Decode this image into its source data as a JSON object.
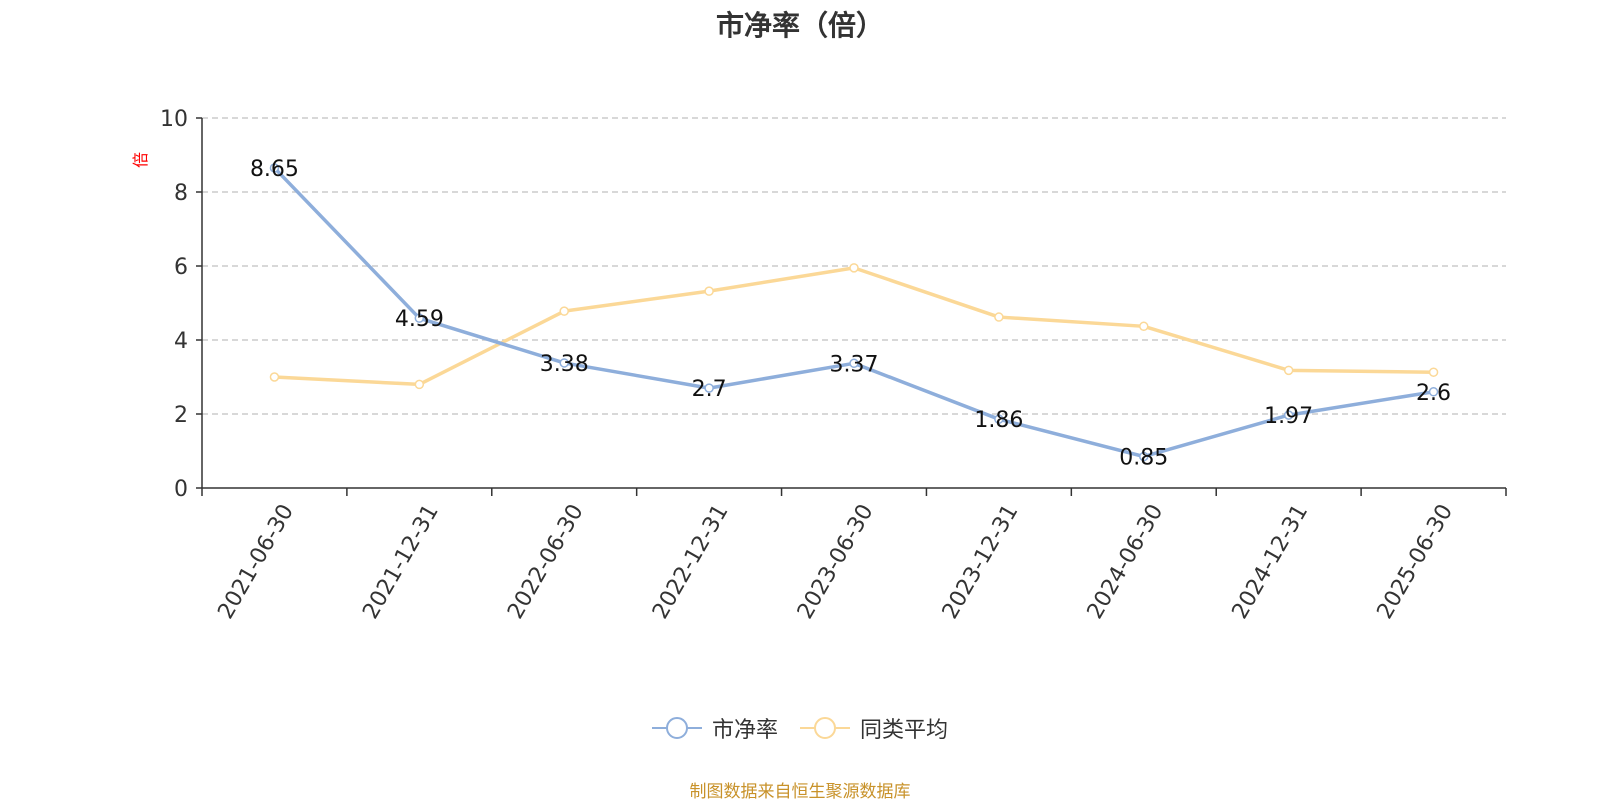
{
  "title": "市净率（倍）",
  "y_unit": "倍",
  "source_note": "制图数据来自恒生聚源数据库",
  "colors": {
    "series_1": "#8eaedb",
    "series_2": "#fbd897",
    "grid": "#cccccc",
    "axis": "#333333",
    "unit_label": "#ff0000",
    "source_note": "#c8922a"
  },
  "chart_data": {
    "type": "line",
    "title": "市净率（倍）",
    "x": [
      "2021-06-30",
      "2021-12-31",
      "2022-06-30",
      "2022-12-31",
      "2023-06-30",
      "2023-12-31",
      "2024-06-30",
      "2024-12-31",
      "2025-06-30"
    ],
    "ylabel": "倍",
    "ylim": [
      0,
      10
    ],
    "yticks": [
      0,
      2,
      4,
      6,
      8,
      10
    ],
    "grid": true,
    "legend_position": "bottom",
    "series": [
      {
        "name": "市净率",
        "values": [
          8.65,
          4.59,
          3.38,
          2.7,
          3.37,
          1.86,
          0.85,
          1.97,
          2.6
        ],
        "show_labels": true
      },
      {
        "name": "同类平均",
        "values": [
          3.0,
          2.8,
          4.78,
          5.32,
          5.95,
          4.62,
          4.37,
          3.18,
          3.13
        ],
        "show_labels": false
      }
    ]
  }
}
